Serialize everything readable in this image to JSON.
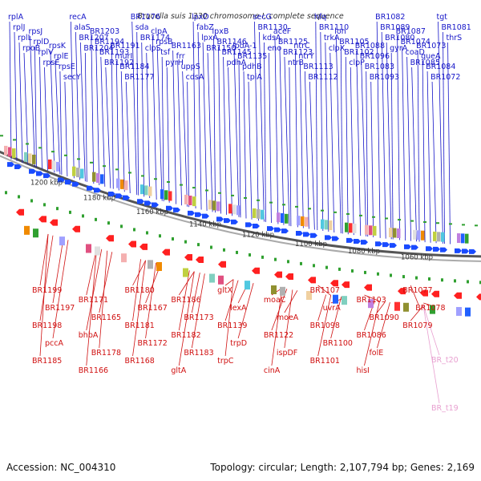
{
  "title": "Brucella suis 1330 chromosome I, complete sequence",
  "footer": {
    "accession": "Accession: NC_004310",
    "topology": "Topology: circular; Length: 2,107,794 bp; Genes: 2,169"
  },
  "colors": {
    "top_labels": "#1515c8",
    "bottom_labels": "#d01010",
    "rna_labels": "#e8a0d0",
    "backbone": "#9a9a9a"
  },
  "kbp_ticks": [
    "1200 kbp",
    "1180 kbp",
    "1160 kbp",
    "1140 kbp",
    "1120 kbp",
    "1100 kbp",
    "1080 kbp",
    "1060 kbp"
  ],
  "top_genes": [
    "rplA",
    "rplJ",
    "rplL",
    "rpoB",
    "rpsJ",
    "rplD",
    "rplV",
    "rpsE",
    "rpsK",
    "rplE",
    "rpsE",
    "secY",
    "recA",
    "alaS",
    "BR1207",
    "BR1204",
    "BR1203",
    "BR1194",
    "BR1193",
    "BR1192",
    "BR1191",
    "murI",
    "BR1184",
    "BR1177",
    "BR1176",
    "sda",
    "BR1174",
    "clpS",
    "clpA",
    "rpsB",
    "tsf",
    "pyrH",
    "BR1163",
    "frr",
    "uppS",
    "cdsA",
    "lpxD",
    "fabZ",
    "lpxA",
    "BR1150",
    "lpxB",
    "BR1146",
    "BR1145",
    "pdhA",
    "lpdA-1",
    "BR1135",
    "pdhB",
    "tpiA",
    "secG",
    "BR1130",
    "kdsA",
    "eno",
    "aceF",
    "BR1125",
    "BR1123",
    "ntrB",
    "ntrC",
    "ntrY",
    "BR1113",
    "BR1112",
    "hfq",
    "BR1110",
    "trkA",
    "clpX",
    "lon",
    "BR1105",
    "BR1102",
    "clpP",
    "BR1088",
    "BR1096",
    "BR1083",
    "BR1093",
    "BR1082",
    "BR1089",
    "BR1080",
    "gyrA",
    "BR1087",
    "BR1074",
    "coaD",
    "BR1085",
    "BR1073",
    "queA",
    "BR1084",
    "BR1072",
    "tgt",
    "BR1081",
    "thrS"
  ],
  "bottom_genes": [
    "BR1199",
    "BR1197",
    "BR1198",
    "pccA",
    "BR1185",
    "BR1171",
    "BR1165",
    "bhbA",
    "BR1178",
    "BR1166",
    "BR1180",
    "BR1167",
    "BR1181",
    "BR1172",
    "BR1168",
    "BR1186",
    "BR1173",
    "BR1182",
    "BR1183",
    "gltA",
    "gltX",
    "lexA",
    "BR1139",
    "trpD",
    "trpC",
    "moaC",
    "moeA",
    "BR1122",
    "ispDF",
    "cinA",
    "BR1107",
    "uvrA",
    "BR1098",
    "BR1100",
    "BR1101",
    "BR1103",
    "BR1090",
    "BR1086",
    "folE",
    "hisI",
    "BR1077",
    "BR1078",
    "BR1079"
  ],
  "rna_genes": [
    "BR_t20",
    "BR_t19"
  ]
}
